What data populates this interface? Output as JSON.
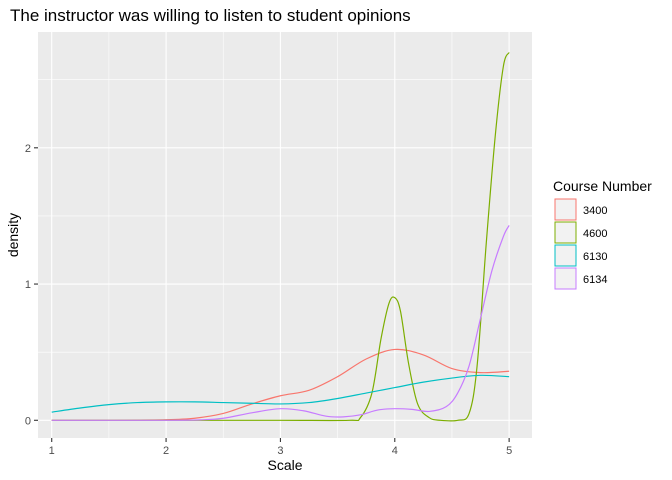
{
  "chart_data": {
    "type": "line",
    "title": "The instructor was willing to listen to student opinions",
    "xlabel": "Scale",
    "ylabel": "density",
    "xlim": [
      0.88,
      5.2
    ],
    "ylim": [
      -0.13,
      2.85
    ],
    "x_ticks": [
      1,
      2,
      3,
      4,
      5
    ],
    "x_tick_labels": [
      "1",
      "2",
      "3",
      "4",
      "5"
    ],
    "y_ticks": [
      0,
      1,
      2
    ],
    "y_tick_labels": [
      "0",
      "1",
      "2"
    ],
    "grid": true,
    "legend": {
      "title": "Course Number",
      "position": "right"
    },
    "series": [
      {
        "name": "3400",
        "color": "#F8766D",
        "points": [
          [
            1,
            0
          ],
          [
            1.5,
            0
          ],
          [
            2,
            0.004
          ],
          [
            2.25,
            0.015
          ],
          [
            2.5,
            0.05
          ],
          [
            2.75,
            0.12
          ],
          [
            3,
            0.18
          ],
          [
            3.25,
            0.22
          ],
          [
            3.5,
            0.32
          ],
          [
            3.75,
            0.45
          ],
          [
            4,
            0.52
          ],
          [
            4.25,
            0.48
          ],
          [
            4.5,
            0.38
          ],
          [
            4.75,
            0.35
          ],
          [
            5,
            0.36
          ]
        ]
      },
      {
        "name": "4600",
        "color": "#7CAE00",
        "points": [
          [
            1,
            0
          ],
          [
            2,
            0
          ],
          [
            3,
            0
          ],
          [
            3.6,
            0
          ],
          [
            3.7,
            0.02
          ],
          [
            3.8,
            0.2
          ],
          [
            3.88,
            0.6
          ],
          [
            3.95,
            0.86
          ],
          [
            4,
            0.9
          ],
          [
            4.05,
            0.8
          ],
          [
            4.12,
            0.42
          ],
          [
            4.2,
            0.12
          ],
          [
            4.3,
            0.02
          ],
          [
            4.4,
            0
          ],
          [
            4.55,
            0
          ],
          [
            4.65,
            0.05
          ],
          [
            4.72,
            0.4
          ],
          [
            4.8,
            1.3
          ],
          [
            4.88,
            2.1
          ],
          [
            4.95,
            2.6
          ],
          [
            5,
            2.7
          ]
        ]
      },
      {
        "name": "6130",
        "color": "#00BFC4",
        "points": [
          [
            1,
            0.06
          ],
          [
            1.25,
            0.09
          ],
          [
            1.5,
            0.115
          ],
          [
            1.75,
            0.13
          ],
          [
            2,
            0.135
          ],
          [
            2.25,
            0.135
          ],
          [
            2.5,
            0.13
          ],
          [
            2.75,
            0.125
          ],
          [
            3,
            0.12
          ],
          [
            3.25,
            0.13
          ],
          [
            3.5,
            0.16
          ],
          [
            3.75,
            0.2
          ],
          [
            4,
            0.24
          ],
          [
            4.25,
            0.28
          ],
          [
            4.5,
            0.31
          ],
          [
            4.75,
            0.33
          ],
          [
            5,
            0.32
          ]
        ]
      },
      {
        "name": "6134",
        "color": "#C77CFF",
        "points": [
          [
            1,
            0
          ],
          [
            2,
            0
          ],
          [
            2.3,
            0.003
          ],
          [
            2.5,
            0.015
          ],
          [
            2.75,
            0.055
          ],
          [
            3,
            0.085
          ],
          [
            3.2,
            0.07
          ],
          [
            3.4,
            0.03
          ],
          [
            3.55,
            0.025
          ],
          [
            3.7,
            0.04
          ],
          [
            3.85,
            0.075
          ],
          [
            4,
            0.085
          ],
          [
            4.15,
            0.08
          ],
          [
            4.3,
            0.065
          ],
          [
            4.45,
            0.1
          ],
          [
            4.55,
            0.2
          ],
          [
            4.65,
            0.4
          ],
          [
            4.75,
            0.75
          ],
          [
            4.85,
            1.1
          ],
          [
            4.95,
            1.35
          ],
          [
            5,
            1.43
          ]
        ]
      }
    ]
  }
}
